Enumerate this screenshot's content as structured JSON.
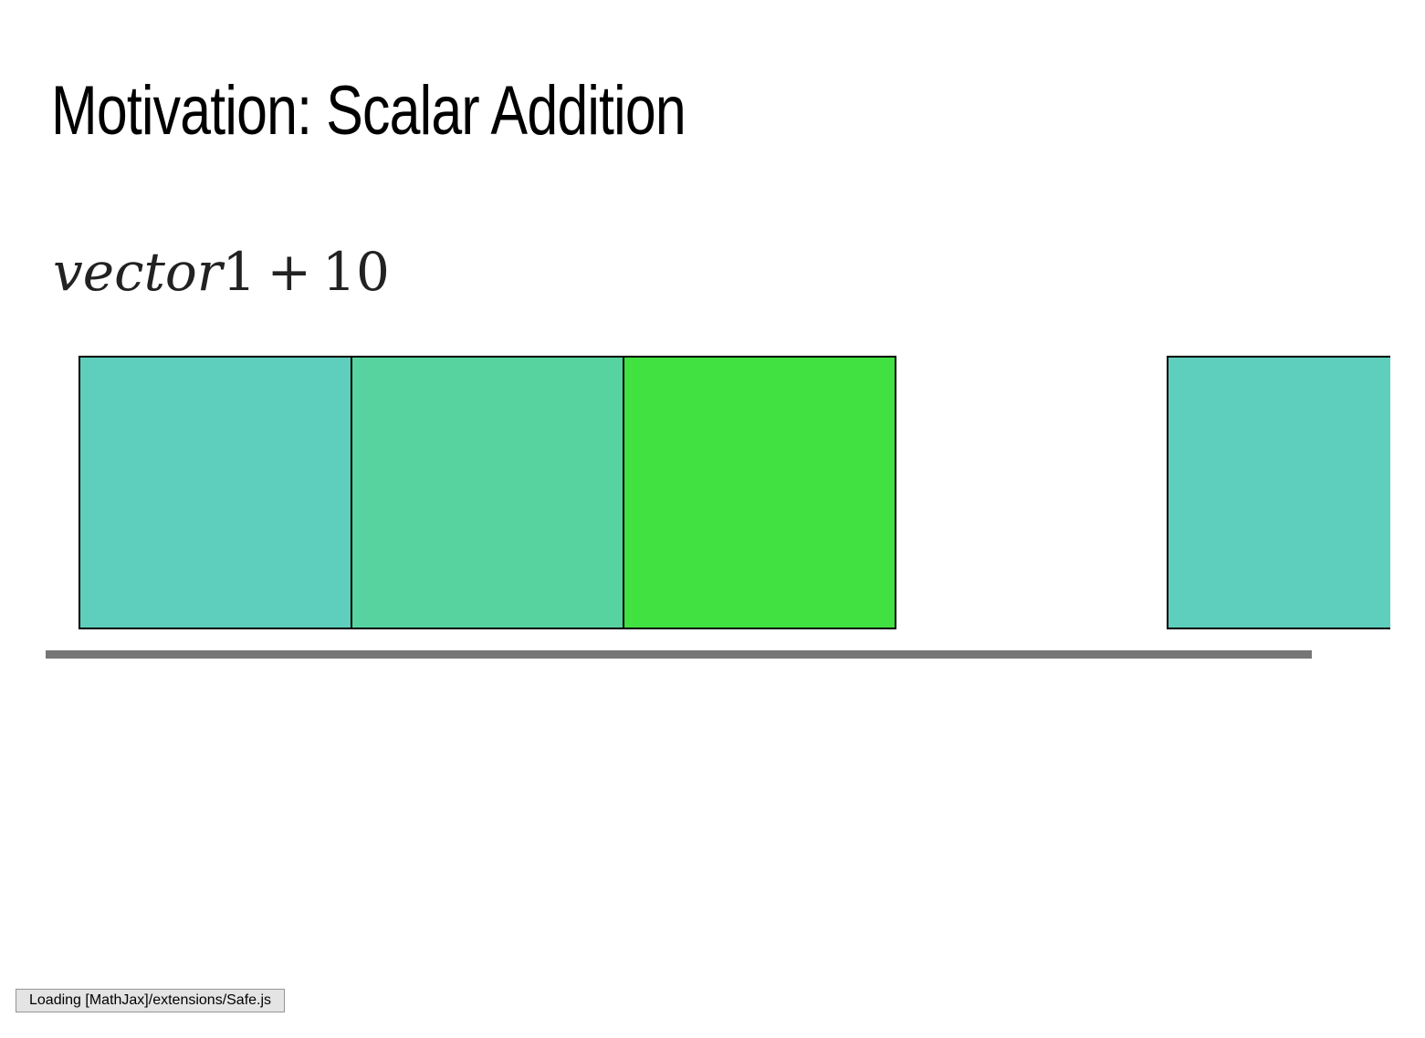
{
  "slide": {
    "title": "Motivation: Scalar Addition",
    "formula": {
      "variable": "vector",
      "index": "1",
      "operator": "+",
      "constant": "10"
    }
  },
  "vector_cells": [
    {
      "color": "#5ecebd"
    },
    {
      "color": "#57d3a0"
    },
    {
      "color": "#40e140"
    },
    {
      "color": "#5ecebd"
    }
  ],
  "status": {
    "loading_text": "Loading [MathJax]/extensions/Safe.js"
  }
}
